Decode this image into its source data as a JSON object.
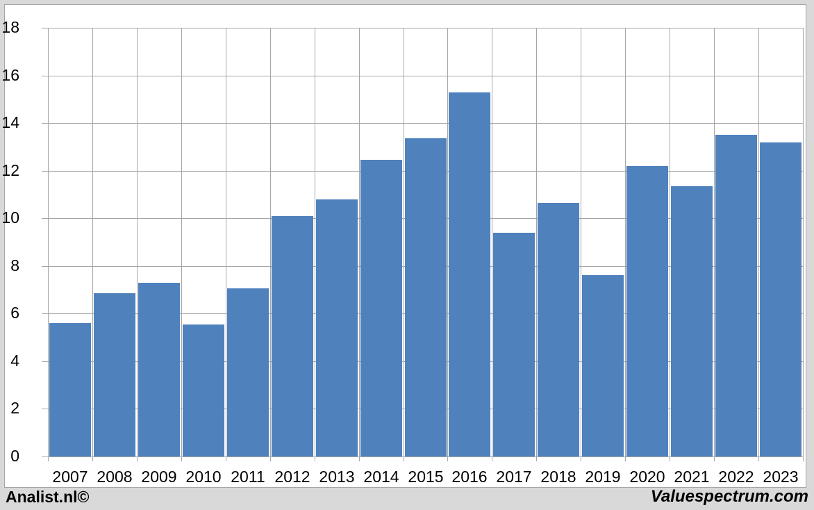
{
  "chart_data": {
    "type": "bar",
    "title": "",
    "xlabel": "",
    "ylabel": "",
    "categories": [
      "2007",
      "2008",
      "2009",
      "2010",
      "2011",
      "2012",
      "2013",
      "2014",
      "2015",
      "2016",
      "2017",
      "2018",
      "2019",
      "2020",
      "2021",
      "2022",
      "2023"
    ],
    "values": [
      5.6,
      6.85,
      7.3,
      5.55,
      7.05,
      10.1,
      10.8,
      12.45,
      13.35,
      15.3,
      9.4,
      10.65,
      7.6,
      12.2,
      11.35,
      13.5,
      13.2
    ],
    "ylim": [
      0,
      18
    ],
    "ytick_step": 2,
    "yticks": [
      0,
      2,
      4,
      6,
      8,
      10,
      12,
      14,
      16,
      18
    ],
    "grid": true,
    "legend": "none",
    "bar_color": "#4f81bd",
    "grid_color": "#a6a6a6",
    "plot_background": "#ffffff",
    "page_background": "#d9d9d9"
  },
  "footer": {
    "left_credit": "Analist.nl©",
    "right_credit": "Valuespectrum.com"
  }
}
